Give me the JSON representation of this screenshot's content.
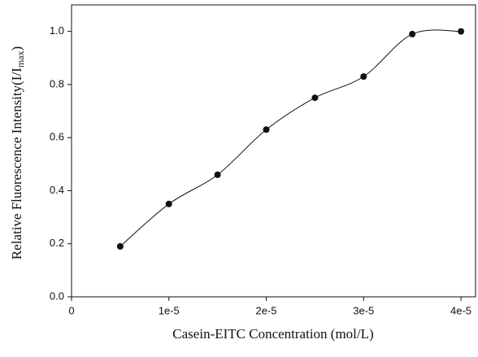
{
  "chart_data": {
    "type": "scatter",
    "x_label": "Casein-EITC Concentration (mol/L)",
    "y_label": "Relative Fluorescence Intensity(I/I",
    "y_label_sub": "max",
    "y_label_end": ")",
    "x": [
      5e-06,
      1e-05,
      1.5e-05,
      2e-05,
      2.5e-05,
      3e-05,
      3.5e-05,
      4e-05
    ],
    "values": [
      0.19,
      0.35,
      0.46,
      0.63,
      0.75,
      0.83,
      0.99,
      1.0
    ],
    "color": "#111111",
    "xlim": [
      0,
      4.15e-05
    ],
    "ylim": [
      0,
      1.1
    ],
    "xticks": [
      0,
      {
        "value": 1e-05,
        "label": "1e-5"
      },
      {
        "value": 2e-05,
        "label": "2e-5"
      },
      {
        "value": 3e-05,
        "label": "3e-5"
      },
      {
        "value": 4e-05,
        "label": "4e-5"
      }
    ],
    "yticks": [
      {
        "value": 0,
        "label": "0.0"
      },
      0.2,
      0.4,
      0.6,
      0.8,
      {
        "value": 1,
        "label": "1.0"
      }
    ],
    "smooth_line": true
  }
}
